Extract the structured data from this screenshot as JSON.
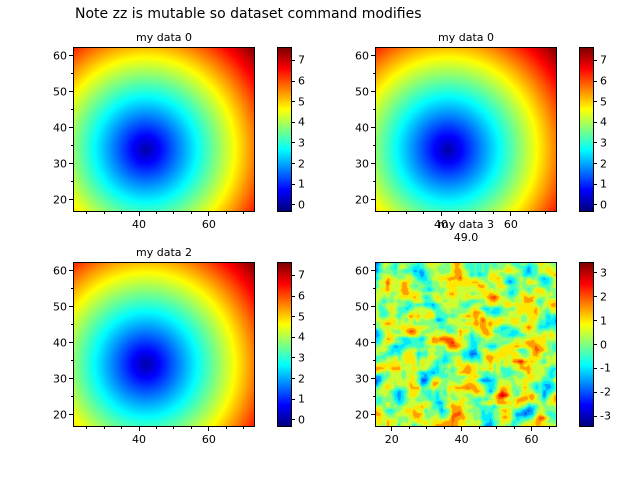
{
  "suptitle": "Note zz is mutable so dataset command modifies",
  "chart_data": [
    {
      "type": "heatmap",
      "title": "my data 0",
      "colormap": "jet",
      "xlim": [
        21.4,
        72.9
      ],
      "ylim": [
        16.9,
        62.2
      ],
      "xticks": [
        40,
        60
      ],
      "xminor": [
        25,
        30,
        35,
        45,
        50,
        55,
        65,
        70
      ],
      "yticks": [
        20,
        30,
        40,
        50,
        60
      ],
      "yminor": [
        25,
        35,
        45,
        55
      ],
      "field": {
        "kind": "radial",
        "center": [
          42,
          34
        ],
        "scale": 0.182
      },
      "vmin": -0.3,
      "vmax": 7.6,
      "colorbar_ticks": [
        0,
        1,
        2,
        3,
        4,
        5,
        6,
        7
      ]
    },
    {
      "type": "heatmap",
      "title": "my data 0",
      "colormap": "jet",
      "xlim": [
        21.4,
        72.9
      ],
      "ylim": [
        16.9,
        62.2
      ],
      "xticks": [
        40,
        60
      ],
      "xminor": [
        25,
        30,
        35,
        45,
        50,
        55,
        65,
        70
      ],
      "yticks": [
        20,
        30,
        40,
        50,
        60
      ],
      "yminor": [
        25,
        35,
        45,
        55
      ],
      "field": {
        "kind": "radial",
        "center": [
          42,
          34
        ],
        "scale": 0.182
      },
      "vmin": -0.3,
      "vmax": 7.6,
      "colorbar_ticks": [
        0,
        1,
        2,
        3,
        4,
        5,
        6,
        7
      ]
    },
    {
      "type": "heatmap",
      "title": "my data 2",
      "colormap": "jet",
      "xlim": [
        21.4,
        72.9
      ],
      "ylim": [
        16.9,
        62.2
      ],
      "xticks": [
        40,
        60
      ],
      "xminor": [
        25,
        30,
        35,
        45,
        50,
        55,
        65,
        70
      ],
      "yticks": [
        20,
        30,
        40,
        50,
        60
      ],
      "yminor": [
        25,
        35,
        45,
        55
      ],
      "field": {
        "kind": "radial",
        "center": [
          42,
          34
        ],
        "scale": 0.182
      },
      "vmin": -0.3,
      "vmax": 7.6,
      "colorbar_ticks": [
        0,
        1,
        2,
        3,
        4,
        5,
        6,
        7
      ]
    },
    {
      "type": "heatmap",
      "title": "my data 3",
      "subtitle": "49.0",
      "colormap": "jet",
      "xlim": [
        15.5,
        67.0
      ],
      "ylim": [
        16.9,
        62.2
      ],
      "xticks": [
        20,
        40,
        60
      ],
      "xminor": [
        25,
        30,
        35,
        45,
        50,
        55,
        65
      ],
      "yticks": [
        20,
        30,
        40,
        50,
        60
      ],
      "yminor": [
        25,
        35,
        45,
        55
      ],
      "field": {
        "kind": "noise",
        "seed": 12,
        "mean": 0.4,
        "amp": 4,
        "quant": 0.5
      },
      "vmin": -3.4,
      "vmax": 3.4,
      "colorbar_ticks": [
        -3,
        -2,
        -1,
        0,
        1,
        2,
        3
      ]
    }
  ]
}
